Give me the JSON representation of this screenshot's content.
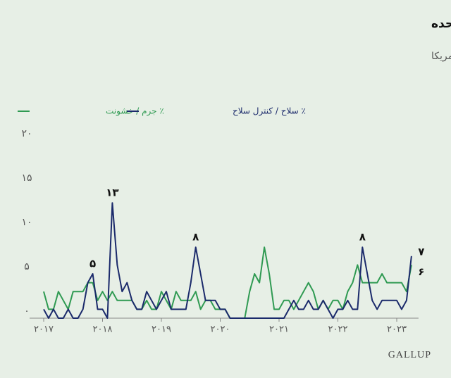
{
  "chart_data": {
    "type": "line",
    "title": "روند اخیر اشاره به «جرم و اسلحه» به عنوان بزرگترین مشکل ایالت متحده",
    "subtitle": "براساس نظر بزرگسالان آمریکا",
    "source": "GALLUP",
    "categories": [
      "۲۰۱۷",
      null,
      null,
      null,
      null,
      null,
      null,
      null,
      null,
      null,
      null,
      null,
      "۲۰۱۸",
      null,
      null,
      null,
      null,
      null,
      null,
      null,
      null,
      null,
      null,
      null,
      "۲۰۱۹",
      null,
      null,
      null,
      null,
      null,
      null,
      null,
      null,
      null,
      null,
      null,
      "۲۰۲۰",
      null,
      null,
      null,
      null,
      null,
      null,
      null,
      null,
      null,
      null,
      null,
      "۲۰۲۱",
      null,
      null,
      null,
      null,
      null,
      null,
      null,
      null,
      null,
      null,
      null,
      "۲۰۲۲",
      null,
      null,
      null,
      null,
      null,
      null,
      null,
      null,
      null,
      null,
      null,
      "۲۰۲۳",
      null,
      null,
      null
    ],
    "series": [
      {
        "name": "٪ جرم / خشونت",
        "color": "#2f9a52",
        "values": [
          3,
          1,
          1,
          3,
          2,
          1,
          3,
          3,
          3,
          4,
          4,
          2,
          3,
          2,
          3,
          2,
          2,
          2,
          2,
          1,
          1,
          2,
          1,
          1,
          3,
          2,
          1,
          3,
          2,
          2,
          2,
          3,
          1,
          2,
          2,
          1,
          1,
          1,
          0,
          0,
          0,
          0,
          3,
          5,
          4,
          8,
          5,
          1,
          1,
          2,
          2,
          1,
          2,
          3,
          4,
          3,
          1,
          2,
          1,
          2,
          2,
          1,
          3,
          4,
          6,
          4,
          4,
          4,
          4,
          5,
          4,
          4,
          4,
          4,
          3,
          6
        ],
        "value_labels": [
          null,
          null,
          null,
          null,
          null,
          null,
          null,
          null,
          null,
          null,
          null,
          null,
          null,
          null,
          null,
          null,
          null,
          null,
          null,
          null,
          null,
          null,
          null,
          null,
          null,
          null,
          null,
          null,
          null,
          null,
          null,
          null,
          null,
          null,
          null,
          null,
          null,
          null,
          null,
          null,
          null,
          null,
          null,
          null,
          null,
          null,
          null,
          null,
          null,
          null,
          null,
          null,
          null,
          null,
          null,
          null,
          null,
          null,
          null,
          null,
          null,
          null,
          null,
          null,
          null,
          null,
          null,
          null,
          null,
          null,
          null,
          null,
          null,
          null,
          null,
          "۶"
        ]
      },
      {
        "name": "٪ سلاح / کنترل سلاح",
        "color": "#1b2a6b",
        "values": [
          1,
          0,
          1,
          0,
          0,
          1,
          0,
          0,
          1,
          4,
          5,
          1,
          1,
          0,
          13,
          6,
          3,
          4,
          2,
          1,
          1,
          3,
          2,
          1,
          2,
          3,
          1,
          1,
          1,
          1,
          4,
          8,
          5,
          2,
          2,
          2,
          1,
          1,
          0,
          0,
          0,
          0,
          0,
          0,
          0,
          0,
          0,
          0,
          0,
          0,
          1,
          2,
          1,
          1,
          2,
          1,
          1,
          2,
          1,
          0,
          1,
          1,
          2,
          1,
          1,
          8,
          5,
          2,
          1,
          2,
          2,
          2,
          2,
          1,
          2,
          7
        ],
        "value_labels": [
          null,
          null,
          null,
          null,
          null,
          null,
          null,
          null,
          null,
          null,
          "۵",
          null,
          null,
          null,
          "۱۳",
          null,
          null,
          null,
          null,
          null,
          null,
          null,
          null,
          null,
          null,
          null,
          null,
          null,
          null,
          null,
          null,
          "۸",
          null,
          null,
          null,
          null,
          null,
          null,
          null,
          null,
          null,
          null,
          null,
          null,
          null,
          null,
          null,
          null,
          null,
          null,
          null,
          null,
          null,
          null,
          null,
          null,
          null,
          null,
          null,
          null,
          null,
          null,
          null,
          null,
          null,
          "۸",
          null,
          null,
          null,
          null,
          null,
          null,
          null,
          null,
          null,
          "۷"
        ]
      }
    ],
    "ylim": [
      0,
      20
    ],
    "yticks": [
      {
        "value": 0,
        "label": "۰"
      },
      {
        "value": 5,
        "label": "۵"
      },
      {
        "value": 10,
        "label": "۱۰"
      },
      {
        "value": 15,
        "label": "۱۵"
      },
      {
        "value": 20,
        "label": "۲۰"
      }
    ],
    "grid": false
  }
}
